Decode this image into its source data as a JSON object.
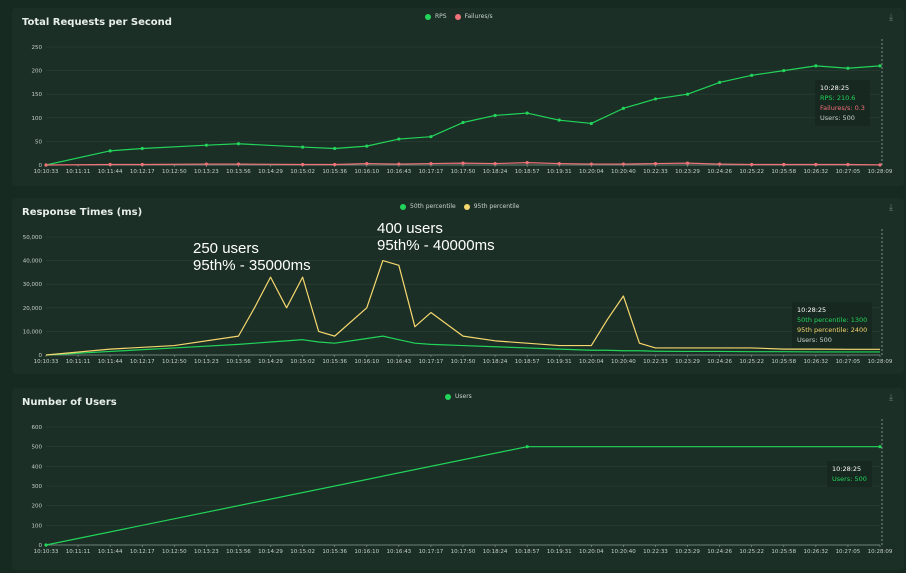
{
  "colors": {
    "background": "#172a22",
    "panel": "#1b2f26",
    "green": "#22d45a",
    "red": "#f07178",
    "yellow": "#f5d76e",
    "axis": "#c6d0ca",
    "grid": "#2c4136"
  },
  "x_ticks": [
    "10:10:33",
    "10:11:11",
    "10:11:44",
    "10:12:17",
    "10:12:50",
    "10:13:23",
    "10:13:56",
    "10:14:29",
    "10:15:02",
    "10:15:36",
    "10:16:10",
    "10:16:43",
    "10:17:17",
    "10:17:50",
    "10:18:24",
    "10:18:57",
    "10:19:31",
    "10:20:04",
    "10:20:40",
    "10:22:33",
    "10:23:29",
    "10:24:26",
    "10:25:22",
    "10:25:58",
    "10:26:32",
    "10:27:05",
    "10:28:09"
  ],
  "icons": {
    "download": "download-icon"
  },
  "charts": {
    "rps": {
      "title": "Total Requests per Second",
      "legend": [
        "RPS",
        "Failures/s"
      ],
      "y_ticks": [
        "0",
        "50",
        "100",
        "150",
        "200",
        "250"
      ],
      "tooltip": {
        "time": "10:28:25",
        "line1": "RPS: 210.6",
        "line2": "Failures/s: 0.3",
        "line3": "Users: 500"
      }
    },
    "response": {
      "title": "Response Times (ms)",
      "legend": [
        "50th percentile",
        "95th percentile"
      ],
      "y_ticks": [
        "0",
        "10,000",
        "20,000",
        "30,000",
        "40,000",
        "50,000"
      ],
      "tooltip": {
        "time": "10:28:25",
        "line1": "50th percentile: 1300",
        "line2": "95th percentile: 2400",
        "line3": "Users: 500"
      },
      "annotations": {
        "a1_line1": "250 users",
        "a1_line2": "95th% - 35000ms",
        "a2_line1": "400 users",
        "a2_line2": "95th% - 40000ms"
      }
    },
    "users": {
      "title": "Number of Users",
      "legend": [
        "Users"
      ],
      "y_ticks": [
        "0",
        "100",
        "200",
        "300",
        "400",
        "500",
        "600"
      ],
      "tooltip": {
        "time": "10:28:25",
        "line1": "Users: 500"
      }
    }
  },
  "chart_data": [
    {
      "type": "line",
      "title": "Total Requests per Second",
      "ylim": [
        0,
        250
      ],
      "x": [
        0,
        2,
        3,
        5,
        6,
        8,
        9,
        10,
        11,
        12,
        13,
        14,
        15,
        16,
        17,
        18,
        19,
        20,
        21,
        22,
        23,
        24,
        25,
        26
      ],
      "x_labels_note": "x index refers to x_ticks",
      "series": [
        {
          "name": "RPS",
          "values": [
            0,
            30,
            35,
            42,
            45,
            38,
            35,
            40,
            55,
            60,
            90,
            105,
            110,
            95,
            88,
            120,
            140,
            150,
            175,
            190,
            200,
            210,
            205,
            210
          ]
        },
        {
          "name": "Failures/s",
          "values": [
            0,
            1,
            1,
            2,
            2,
            1,
            1,
            3,
            2,
            3,
            4,
            3,
            5,
            3,
            2,
            2,
            3,
            4,
            2,
            1,
            1,
            1,
            1,
            0.3
          ]
        }
      ]
    },
    {
      "type": "line",
      "title": "Response Times (ms)",
      "ylim": [
        0,
        50000
      ],
      "x": [
        0,
        2,
        4,
        6,
        6.5,
        7,
        7.5,
        8,
        8.5,
        9,
        10,
        10.5,
        11,
        11.5,
        12,
        13,
        14,
        15,
        16,
        17,
        17.5,
        18,
        18.5,
        19,
        20,
        21,
        22,
        23,
        24,
        25,
        26
      ],
      "series": [
        {
          "name": "50th percentile",
          "values": [
            0,
            1500,
            3000,
            4500,
            5000,
            5500,
            6000,
            6500,
            5500,
            5000,
            7000,
            8000,
            6500,
            5000,
            4500,
            4000,
            3500,
            3000,
            2500,
            2000,
            2000,
            1800,
            1800,
            1600,
            1500,
            1500,
            1400,
            1400,
            1300,
            1300,
            1300
          ]
        },
        {
          "name": "95th percentile",
          "values": [
            0,
            2500,
            4000,
            8000,
            20000,
            33000,
            20000,
            33000,
            10000,
            8000,
            20000,
            40000,
            38000,
            12000,
            18000,
            8000,
            6000,
            5000,
            4000,
            4000,
            15000,
            25000,
            5000,
            3000,
            3000,
            3000,
            3000,
            2500,
            2500,
            2400,
            2400
          ]
        }
      ]
    },
    {
      "type": "line",
      "title": "Number of Users",
      "ylim": [
        0,
        600
      ],
      "x": [
        0,
        15,
        26
      ],
      "series": [
        {
          "name": "Users",
          "values": [
            0,
            500,
            500
          ]
        }
      ]
    }
  ]
}
